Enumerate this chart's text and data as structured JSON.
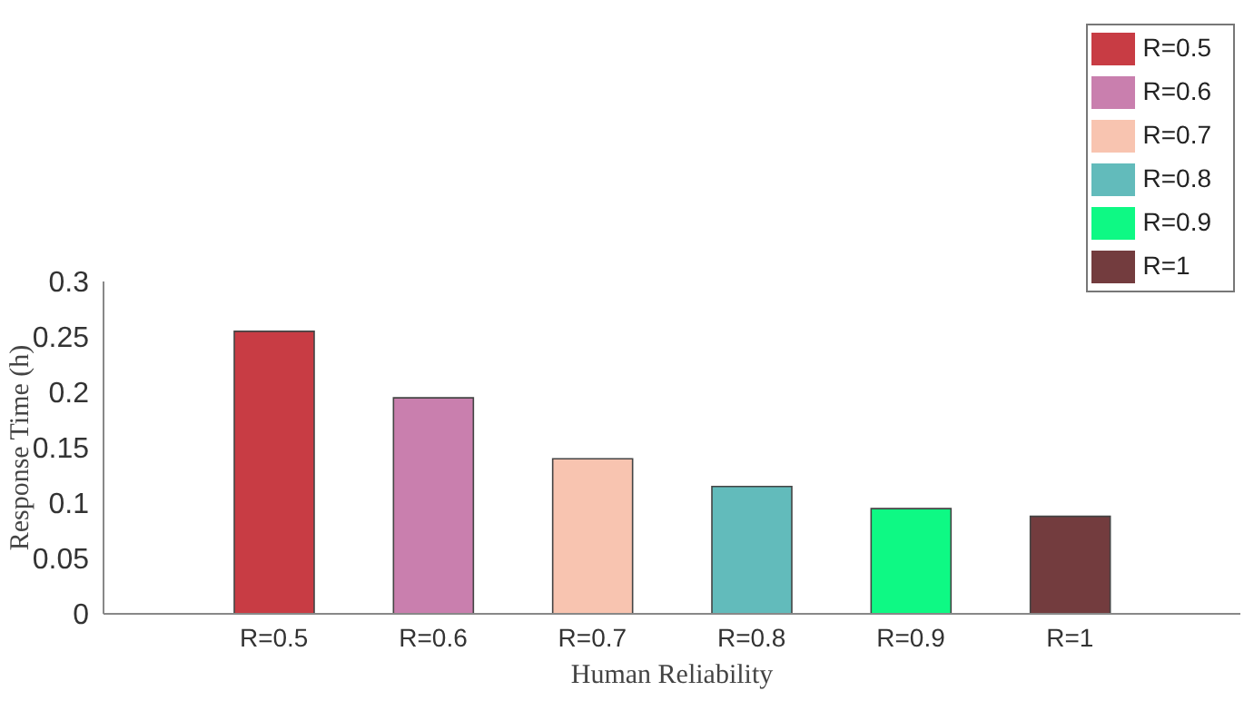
{
  "chart_data": {
    "type": "bar",
    "xlabel": "Human  Reliability",
    "ylabel": "Response Time (h)",
    "categories": [
      "R=0.5",
      "R=0.6",
      "R=0.7",
      "R=0.8",
      "R=0.9",
      "R=1"
    ],
    "series": [
      {
        "name": "R=0.5",
        "color": "#c83c44",
        "values": [
          0.255,
          null,
          null,
          null,
          null,
          null
        ]
      },
      {
        "name": "R=0.6",
        "color": "#c97fae",
        "values": [
          null,
          0.195,
          null,
          null,
          null,
          null
        ]
      },
      {
        "name": "R=0.7",
        "color": "#f8c4b0",
        "values": [
          null,
          null,
          0.14,
          null,
          null,
          null
        ]
      },
      {
        "name": "R=0.8",
        "color": "#62bbbb",
        "values": [
          null,
          null,
          null,
          0.115,
          null,
          null
        ]
      },
      {
        "name": "R=0.9",
        "color": "#0ef984",
        "values": [
          null,
          null,
          null,
          null,
          0.095,
          null
        ]
      },
      {
        "name": "R=1",
        "color": "#733c3e",
        "values": [
          null,
          null,
          null,
          null,
          null,
          0.088
        ]
      }
    ],
    "stacked": true,
    "ylim": [
      0,
      0.3
    ],
    "yticks": [
      0,
      0.05,
      0.1,
      0.15,
      0.2,
      0.25,
      0.3
    ],
    "grid": false,
    "legend": "top right"
  }
}
